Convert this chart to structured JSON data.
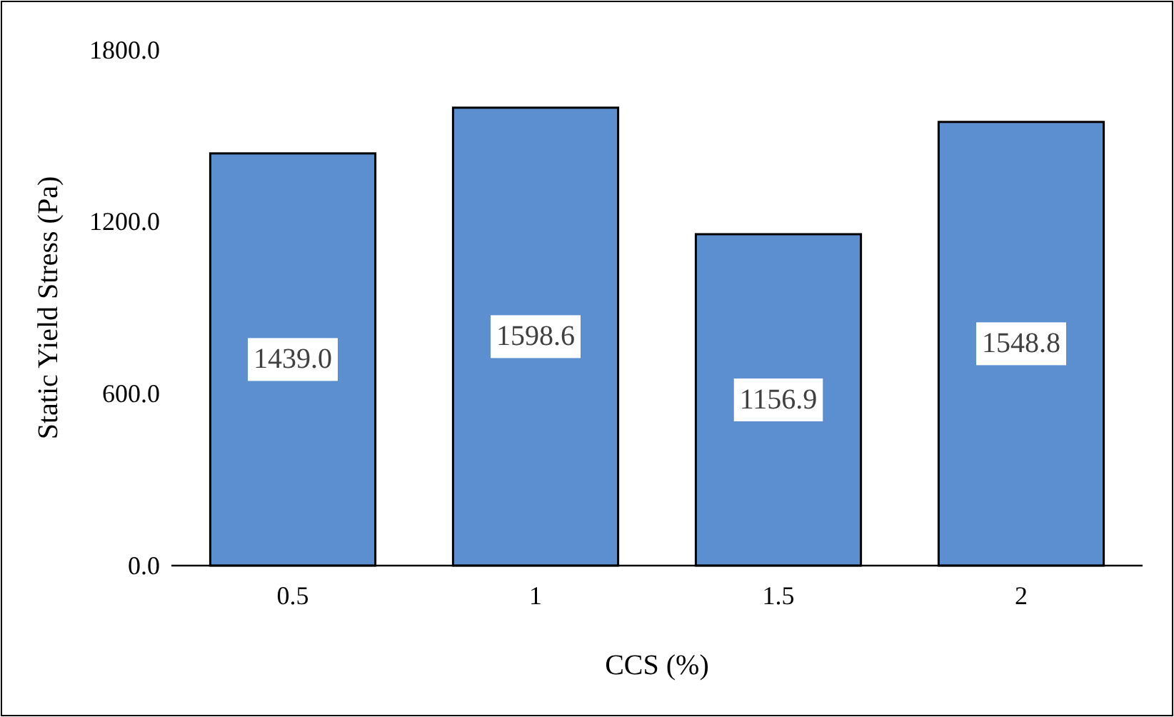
{
  "chart_data": {
    "type": "bar",
    "xlabel": "CCS (%)",
    "ylabel": "Static Yield Stress (Pa)",
    "categories": [
      "0.5",
      "1",
      "1.5",
      "2"
    ],
    "values": [
      1439.0,
      1598.6,
      1156.9,
      1548.8
    ],
    "value_labels": [
      "1439.0",
      "1598.6",
      "1156.9",
      "1548.8"
    ],
    "color": "#5b8fd0",
    "ylim": [
      0,
      1800
    ],
    "yticks": [
      {
        "value": 0,
        "label": "0.0"
      },
      {
        "value": 600,
        "label": "600.0"
      },
      {
        "value": 1200,
        "label": "1200.0"
      },
      {
        "value": 1800,
        "label": "1800.0"
      }
    ],
    "grid": false
  }
}
